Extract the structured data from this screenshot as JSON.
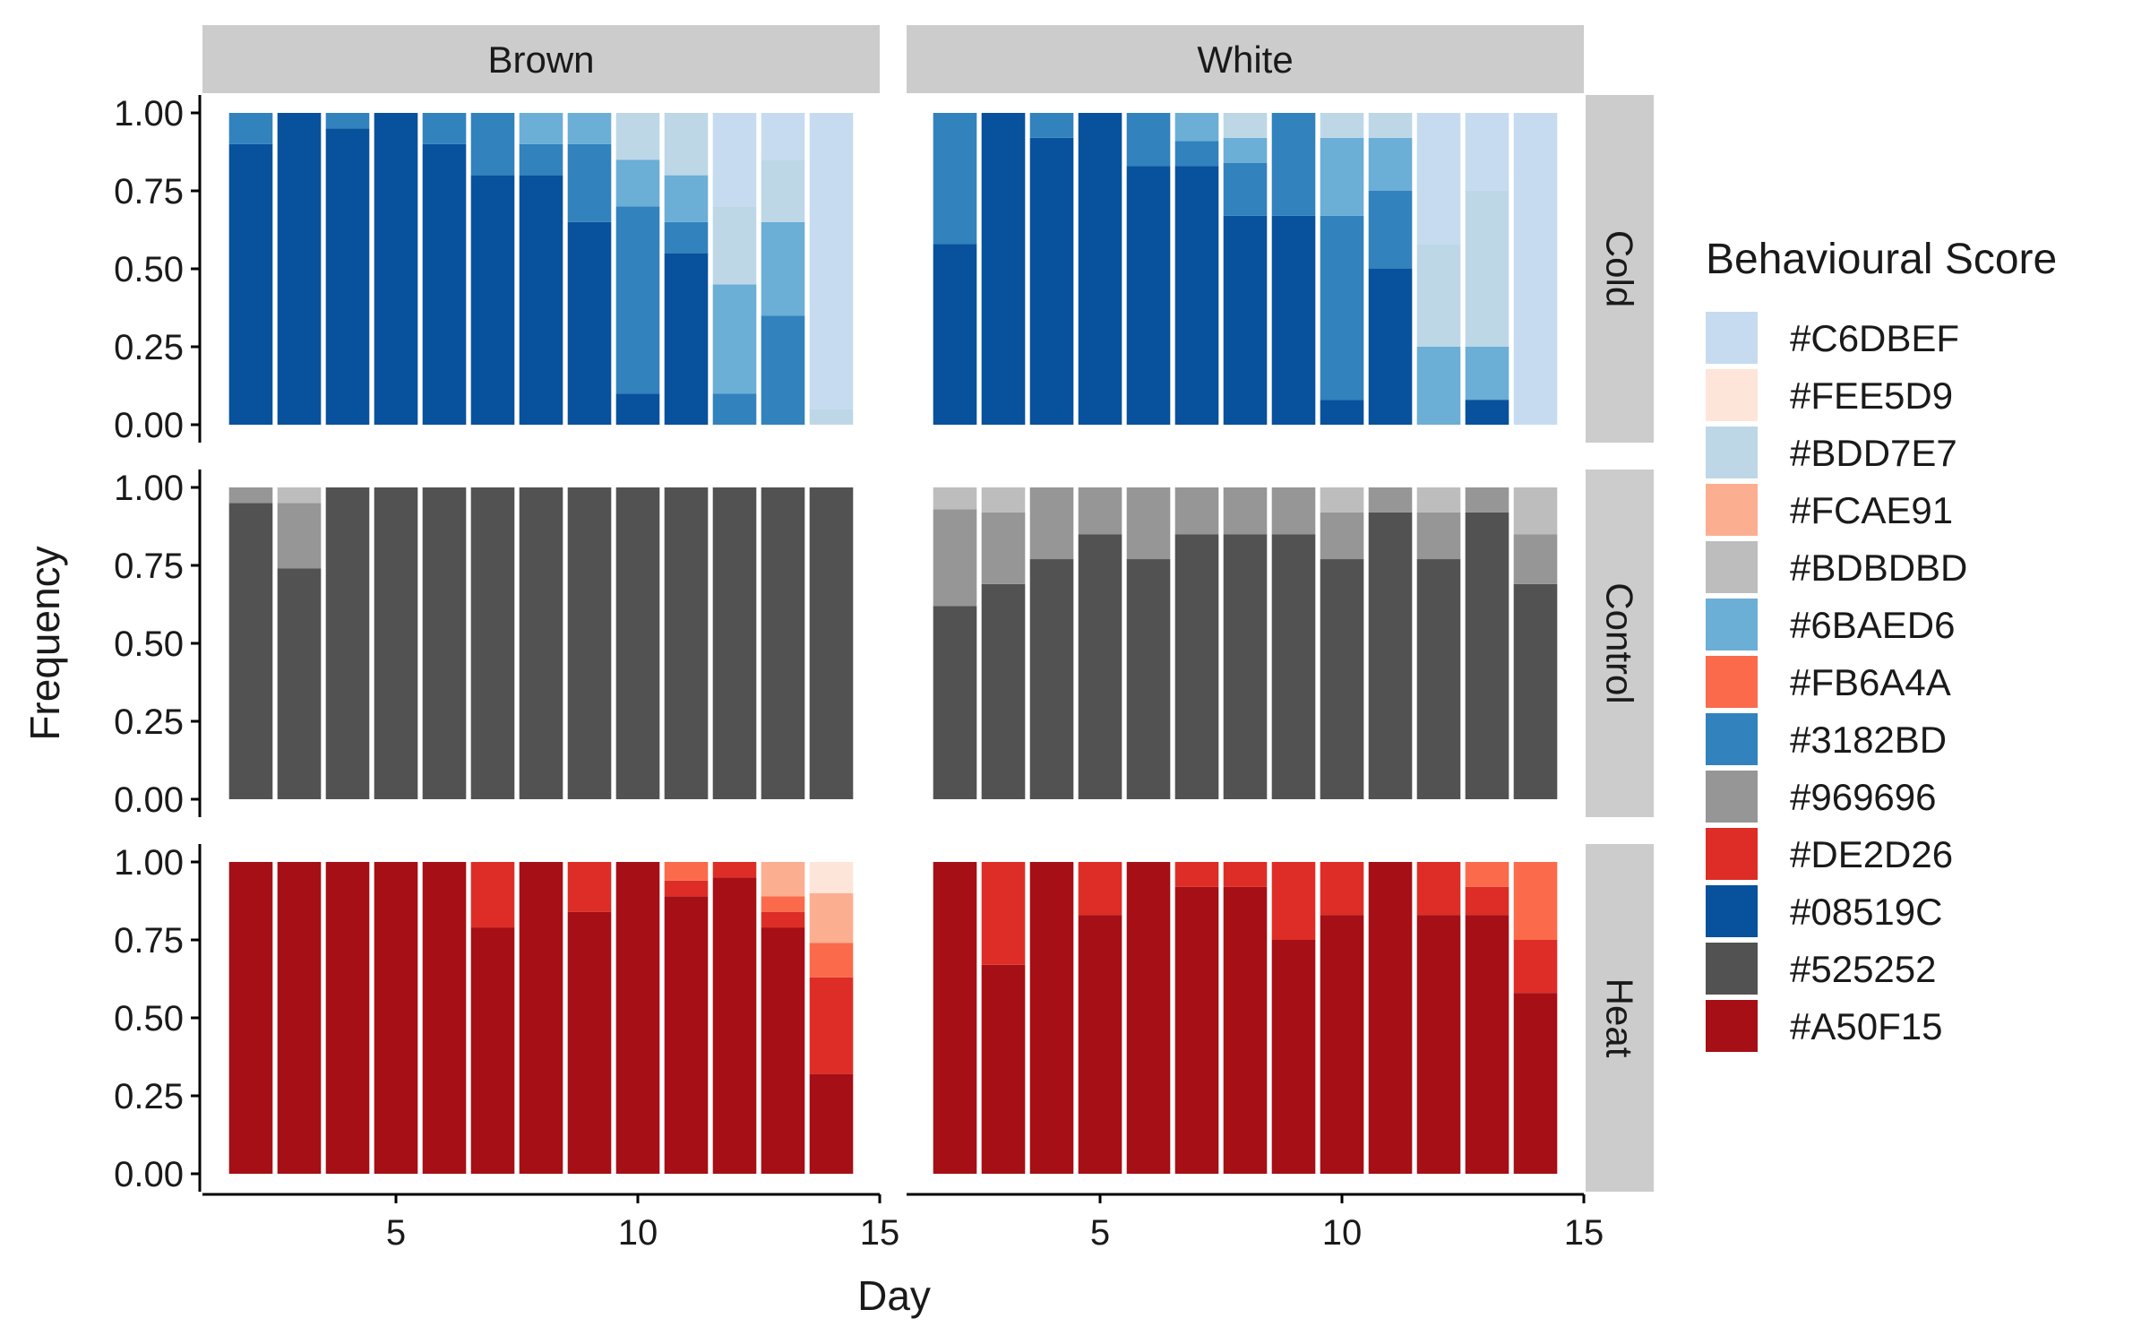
{
  "chart_data": {
    "type": "bar",
    "stacked": true,
    "position": "fill",
    "facet_columns": [
      "Brown",
      "White"
    ],
    "facet_rows": [
      "Cold",
      "Control",
      "Heat"
    ],
    "xlabel": "Day",
    "ylabel": "Frequency",
    "xlim": [
      1,
      15
    ],
    "ylim": [
      0,
      1
    ],
    "x_ticks": [
      5,
      10,
      15
    ],
    "y_ticks": [
      "0.00",
      "0.25",
      "0.50",
      "0.75",
      "1.00"
    ],
    "grid": false,
    "legend": {
      "title": "Behavioural Score",
      "placement": "right",
      "entries": [
        "#C6DBEF",
        "#FEE5D9",
        "#BDD7E7",
        "#FCAE91",
        "#BDBDBD",
        "#6BAED6",
        "#FB6A4A",
        "#3182BD",
        "#969696",
        "#DE2D26",
        "#08519C",
        "#525252",
        "#A50F15"
      ]
    },
    "days": [
      2,
      3,
      4,
      5,
      6,
      7,
      8,
      9,
      10,
      11,
      12,
      13,
      14
    ],
    "panels": [
      {
        "column": "Brown",
        "row": "Cold",
        "days": [
          2,
          3,
          4,
          5,
          6,
          7,
          8,
          9,
          10,
          11,
          12,
          13,
          14
        ],
        "series": [
          {
            "color": "#08519C",
            "values": [
              0.9,
              1.0,
              0.95,
              1.0,
              0.9,
              0.8,
              0.8,
              0.65,
              0.1,
              0.55,
              0.0,
              0.0,
              0.0
            ]
          },
          {
            "color": "#3182BD",
            "values": [
              0.1,
              0.0,
              0.05,
              0.0,
              0.1,
              0.2,
              0.1,
              0.25,
              0.6,
              0.1,
              0.1,
              0.35,
              0.0
            ]
          },
          {
            "color": "#6BAED6",
            "values": [
              0.0,
              0.0,
              0.0,
              0.0,
              0.0,
              0.0,
              0.1,
              0.1,
              0.15,
              0.15,
              0.35,
              0.3,
              0.0
            ]
          },
          {
            "color": "#BDD7E7",
            "values": [
              0.0,
              0.0,
              0.0,
              0.0,
              0.0,
              0.0,
              0.0,
              0.0,
              0.15,
              0.2,
              0.25,
              0.2,
              0.05
            ]
          },
          {
            "color": "#C6DBEF",
            "values": [
              0.0,
              0.0,
              0.0,
              0.0,
              0.0,
              0.0,
              0.0,
              0.0,
              0.0,
              0.0,
              0.3,
              0.15,
              0.95
            ]
          }
        ]
      },
      {
        "column": "White",
        "row": "Cold",
        "days": [
          2,
          3,
          4,
          5,
          6,
          7,
          8,
          9,
          10,
          11,
          12,
          13,
          14
        ],
        "series": [
          {
            "color": "#08519C",
            "values": [
              0.58,
              1.0,
              0.92,
              1.0,
              0.83,
              0.83,
              0.67,
              0.67,
              0.08,
              0.5,
              0.0,
              0.08,
              0.0
            ]
          },
          {
            "color": "#3182BD",
            "values": [
              0.42,
              0.0,
              0.08,
              0.0,
              0.17,
              0.08,
              0.17,
              0.33,
              0.59,
              0.25,
              0.0,
              0.0,
              0.0
            ]
          },
          {
            "color": "#6BAED6",
            "values": [
              0.0,
              0.0,
              0.0,
              0.0,
              0.0,
              0.09,
              0.08,
              0.0,
              0.25,
              0.17,
              0.25,
              0.17,
              0.0
            ]
          },
          {
            "color": "#BDD7E7",
            "values": [
              0.0,
              0.0,
              0.0,
              0.0,
              0.0,
              0.0,
              0.08,
              0.0,
              0.08,
              0.08,
              0.33,
              0.5,
              0.0
            ]
          },
          {
            "color": "#C6DBEF",
            "values": [
              0.0,
              0.0,
              0.0,
              0.0,
              0.0,
              0.0,
              0.0,
              0.0,
              0.0,
              0.0,
              0.42,
              0.25,
              1.0
            ]
          }
        ]
      },
      {
        "column": "Brown",
        "row": "Control",
        "days": [
          2,
          3,
          4,
          5,
          6,
          7,
          8,
          9,
          10,
          11,
          12,
          13,
          14
        ],
        "series": [
          {
            "color": "#525252",
            "values": [
              0.95,
              0.74,
              1.0,
              1.0,
              1.0,
              1.0,
              1.0,
              1.0,
              1.0,
              1.0,
              1.0,
              1.0,
              1.0
            ]
          },
          {
            "color": "#969696",
            "values": [
              0.05,
              0.21,
              0.0,
              0.0,
              0.0,
              0.0,
              0.0,
              0.0,
              0.0,
              0.0,
              0.0,
              0.0,
              0.0
            ]
          },
          {
            "color": "#BDBDBD",
            "values": [
              0.0,
              0.05,
              0.0,
              0.0,
              0.0,
              0.0,
              0.0,
              0.0,
              0.0,
              0.0,
              0.0,
              0.0,
              0.0
            ]
          }
        ]
      },
      {
        "column": "White",
        "row": "Control",
        "days": [
          2,
          3,
          4,
          5,
          6,
          7,
          8,
          9,
          10,
          11,
          12,
          13,
          14
        ],
        "series": [
          {
            "color": "#525252",
            "values": [
              0.62,
              0.69,
              0.77,
              0.85,
              0.77,
              0.85,
              0.85,
              0.85,
              0.77,
              0.92,
              0.77,
              0.92,
              0.69
            ]
          },
          {
            "color": "#969696",
            "values": [
              0.31,
              0.23,
              0.23,
              0.15,
              0.23,
              0.15,
              0.15,
              0.15,
              0.15,
              0.08,
              0.15,
              0.08,
              0.16
            ]
          },
          {
            "color": "#BDBDBD",
            "values": [
              0.07,
              0.08,
              0.0,
              0.0,
              0.0,
              0.0,
              0.0,
              0.0,
              0.08,
              0.0,
              0.08,
              0.0,
              0.15
            ]
          }
        ]
      },
      {
        "column": "Brown",
        "row": "Heat",
        "days": [
          2,
          3,
          4,
          5,
          6,
          7,
          8,
          9,
          10,
          11,
          12,
          13,
          14
        ],
        "series": [
          {
            "color": "#A50F15",
            "values": [
              1.0,
              1.0,
              1.0,
              1.0,
              1.0,
              0.79,
              1.0,
              0.84,
              1.0,
              0.89,
              0.95,
              0.79,
              0.32
            ]
          },
          {
            "color": "#DE2D26",
            "values": [
              0.0,
              0.0,
              0.0,
              0.0,
              0.0,
              0.21,
              0.0,
              0.16,
              0.0,
              0.05,
              0.05,
              0.05,
              0.31
            ]
          },
          {
            "color": "#FB6A4A",
            "values": [
              0.0,
              0.0,
              0.0,
              0.0,
              0.0,
              0.0,
              0.0,
              0.0,
              0.0,
              0.06,
              0.0,
              0.05,
              0.11
            ]
          },
          {
            "color": "#FCAE91",
            "values": [
              0.0,
              0.0,
              0.0,
              0.0,
              0.0,
              0.0,
              0.0,
              0.0,
              0.0,
              0.0,
              0.0,
              0.11,
              0.16
            ]
          },
          {
            "color": "#FEE5D9",
            "values": [
              0.0,
              0.0,
              0.0,
              0.0,
              0.0,
              0.0,
              0.0,
              0.0,
              0.0,
              0.0,
              0.0,
              0.0,
              0.1
            ]
          }
        ]
      },
      {
        "column": "White",
        "row": "Heat",
        "days": [
          2,
          3,
          4,
          5,
          6,
          7,
          8,
          9,
          10,
          11,
          12,
          13,
          14
        ],
        "series": [
          {
            "color": "#A50F15",
            "values": [
              1.0,
              0.67,
              1.0,
              0.83,
              1.0,
              0.92,
              0.92,
              0.75,
              0.83,
              1.0,
              0.83,
              0.83,
              0.58
            ]
          },
          {
            "color": "#DE2D26",
            "values": [
              0.0,
              0.33,
              0.0,
              0.17,
              0.0,
              0.08,
              0.08,
              0.25,
              0.17,
              0.0,
              0.17,
              0.09,
              0.17
            ]
          },
          {
            "color": "#FB6A4A",
            "values": [
              0.0,
              0.0,
              0.0,
              0.0,
              0.0,
              0.0,
              0.0,
              0.0,
              0.0,
              0.0,
              0.0,
              0.08,
              0.25
            ]
          }
        ]
      }
    ]
  }
}
